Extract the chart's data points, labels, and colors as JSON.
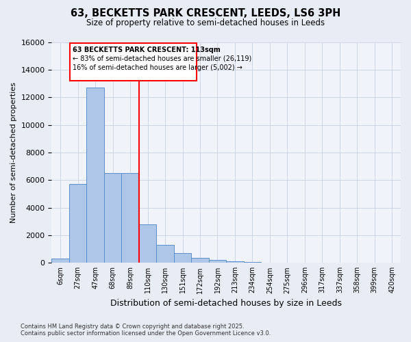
{
  "title_line1": "63, BECKETTS PARK CRESCENT, LEEDS, LS6 3PH",
  "title_line2": "Size of property relative to semi-detached houses in Leeds",
  "xlabel": "Distribution of semi-detached houses by size in Leeds",
  "ylabel": "Number of semi-detached properties",
  "categories": [
    "6sqm",
    "27sqm",
    "47sqm",
    "68sqm",
    "89sqm",
    "110sqm",
    "130sqm",
    "151sqm",
    "172sqm",
    "192sqm",
    "213sqm",
    "234sqm",
    "254sqm",
    "275sqm",
    "296sqm",
    "317sqm",
    "337sqm",
    "358sqm",
    "399sqm",
    "420sqm"
  ],
  "values": [
    300,
    5700,
    12700,
    6500,
    6500,
    2800,
    1300,
    700,
    380,
    200,
    100,
    50,
    15,
    5,
    2,
    1,
    0,
    0,
    0,
    0
  ],
  "bar_color": "#aec6e8",
  "bar_edge_color": "#5b8fc9",
  "vline_color": "red",
  "vline_pos": 5,
  "annotation_title": "63 BECKETTS PARK CRESCENT: 113sqm",
  "annotation_line1": "← 83% of semi-detached houses are smaller (26,119)",
  "annotation_line2": "16% of semi-detached houses are larger (5,002) →",
  "annotation_box_color": "red",
  "ylim": [
    0,
    16000
  ],
  "yticks": [
    0,
    2000,
    4000,
    6000,
    8000,
    10000,
    12000,
    14000,
    16000
  ],
  "footer_line1": "Contains HM Land Registry data © Crown copyright and database right 2025.",
  "footer_line2": "Contains public sector information licensed under the Open Government Licence v3.0.",
  "bg_color": "#e8edf5",
  "plot_bg_color": "#f0f4fa"
}
